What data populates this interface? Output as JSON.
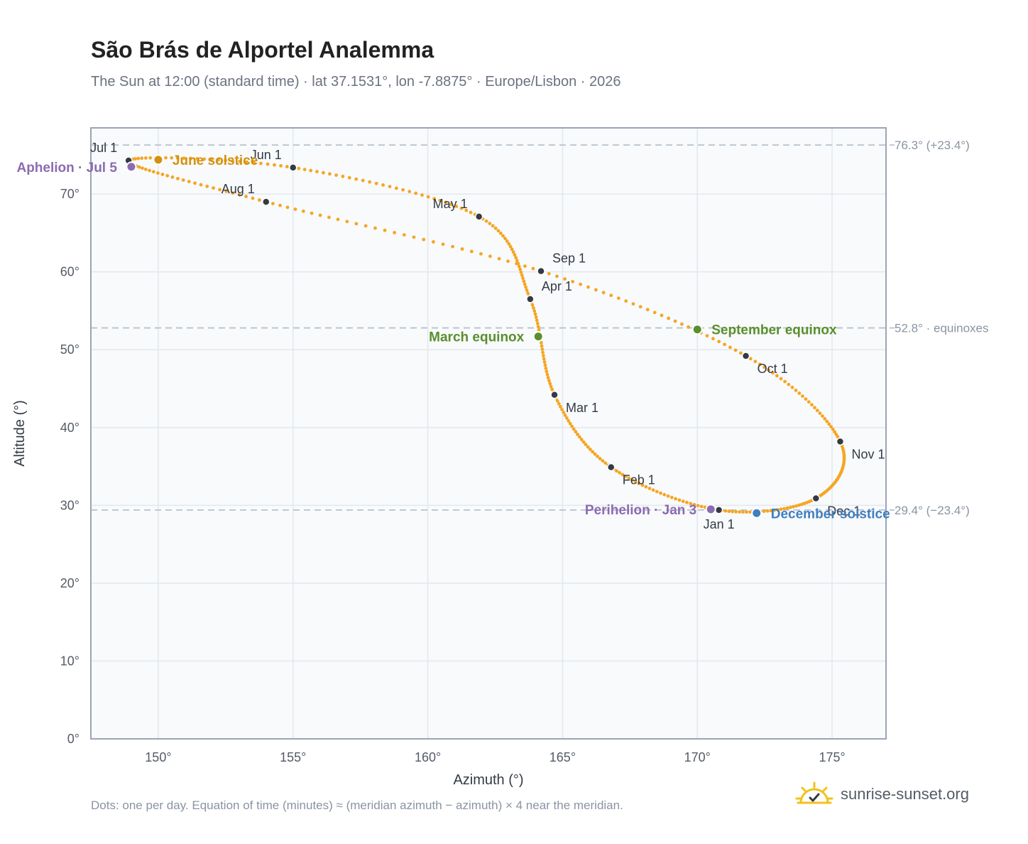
{
  "title": "São Brás de Alportel Analemma",
  "subtitle": "The Sun at 12:00 (standard time) · lat 37.1531°, lon -7.8875° · Europe/Lisbon · 2026",
  "footnote": "Dots: one per day. Equation of time (minutes) ≈ (meridian azimuth − azimuth) × 4 near the meridian.",
  "brand": {
    "text": "sunrise-sunset.org",
    "icon": "sun-logo-icon"
  },
  "colors": {
    "curve": "#f5a623",
    "month_dot": "#333a44",
    "solstice_june": "#d4910e",
    "equinox": "#5a8f2c",
    "december_solstice": "#3f7fc1",
    "apsis": "#8c6bb1",
    "plot_bg": "#f8fafc",
    "grid": "#e3e8ee",
    "ref_line": "#b8c2cc"
  },
  "chart_data": {
    "type": "scatter",
    "xlabel": "Azimuth (°)",
    "ylabel": "Altitude (°)",
    "xlim": [
      147.5,
      177
    ],
    "ylim": [
      0,
      78.5
    ],
    "x_ticks": [
      150,
      155,
      160,
      165,
      170,
      175
    ],
    "x_tick_labels": [
      "150°",
      "155°",
      "160°",
      "165°",
      "170°",
      "175°"
    ],
    "y_ticks": [
      0,
      10,
      20,
      30,
      40,
      50,
      60,
      70
    ],
    "y_tick_labels": [
      "0°",
      "10°",
      "20°",
      "30°",
      "40°",
      "50°",
      "60°",
      "70°"
    ],
    "grid": true,
    "reference_lines": [
      {
        "y": 76.3,
        "label": "76.3° (+23.4°)"
      },
      {
        "y": 52.8,
        "label": "52.8° · equinoxes"
      },
      {
        "y": 29.4,
        "label": "29.4° (−23.4°)"
      }
    ],
    "path": [
      {
        "day": 1,
        "azimuth": 170.8,
        "altitude": 29.4
      },
      {
        "day": 32,
        "azimuth": 166.8,
        "altitude": 34.9
      },
      {
        "day": 60,
        "azimuth": 164.7,
        "altitude": 44.2
      },
      {
        "day": 91,
        "azimuth": 163.8,
        "altitude": 56.5
      },
      {
        "day": 121,
        "azimuth": 161.9,
        "altitude": 67.1
      },
      {
        "day": 152,
        "azimuth": 155.0,
        "altitude": 73.4
      },
      {
        "day": 182,
        "azimuth": 148.9,
        "altitude": 74.3
      },
      {
        "day": 213,
        "azimuth": 154.0,
        "altitude": 69.0
      },
      {
        "day": 244,
        "azimuth": 164.2,
        "altitude": 60.1
      },
      {
        "day": 274,
        "azimuth": 171.8,
        "altitude": 49.2
      },
      {
        "day": 305,
        "azimuth": 175.3,
        "altitude": 38.2
      },
      {
        "day": 335,
        "azimuth": 174.4,
        "altitude": 30.9
      }
    ],
    "month_markers": [
      {
        "label": "Jan 1",
        "azimuth": 170.8,
        "altitude": 29.4,
        "anchor": "below"
      },
      {
        "label": "Feb 1",
        "azimuth": 166.8,
        "altitude": 34.9,
        "anchor": "below-right"
      },
      {
        "label": "Mar 1",
        "azimuth": 164.7,
        "altitude": 44.2,
        "anchor": "below-right"
      },
      {
        "label": "Apr 1",
        "azimuth": 163.8,
        "altitude": 56.5,
        "anchor": "above-right"
      },
      {
        "label": "May 1",
        "azimuth": 161.9,
        "altitude": 67.1,
        "anchor": "above-left"
      },
      {
        "label": "Jun 1",
        "azimuth": 155.0,
        "altitude": 73.4,
        "anchor": "above-left"
      },
      {
        "label": "Jul 1",
        "azimuth": 148.9,
        "altitude": 74.3,
        "anchor": "above-left"
      },
      {
        "label": "Aug 1",
        "azimuth": 154.0,
        "altitude": 69.0,
        "anchor": "above-left"
      },
      {
        "label": "Sep 1",
        "azimuth": 164.2,
        "altitude": 60.1,
        "anchor": "above-right"
      },
      {
        "label": "Oct 1",
        "azimuth": 171.8,
        "altitude": 49.2,
        "anchor": "below-right"
      },
      {
        "label": "Nov 1",
        "azimuth": 175.3,
        "altitude": 38.2,
        "anchor": "below-right"
      },
      {
        "label": "Dec 1",
        "azimuth": 174.4,
        "altitude": 30.9,
        "anchor": "below-right"
      }
    ],
    "events": [
      {
        "label": "June solstice",
        "azimuth": 150.0,
        "altitude": 74.4,
        "color": "#d4910e",
        "anchor": "right"
      },
      {
        "label": "Aphelion · Jul 5",
        "azimuth": 149.0,
        "altitude": 73.5,
        "color": "#8c6bb1",
        "anchor": "left"
      },
      {
        "label": "March equinox",
        "azimuth": 164.1,
        "altitude": 51.7,
        "color": "#5a8f2c",
        "anchor": "left"
      },
      {
        "label": "September equinox",
        "azimuth": 170.0,
        "altitude": 52.6,
        "color": "#5a8f2c",
        "anchor": "right"
      },
      {
        "label": "Perihelion · Jan 3",
        "azimuth": 170.5,
        "altitude": 29.5,
        "color": "#8c6bb1",
        "anchor": "left"
      },
      {
        "label": "December solstice",
        "azimuth": 172.2,
        "altitude": 29.0,
        "color": "#3f7fc1",
        "anchor": "right"
      }
    ]
  }
}
